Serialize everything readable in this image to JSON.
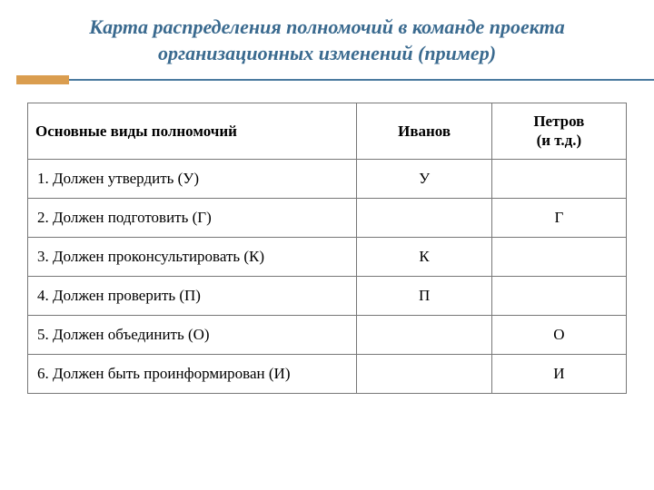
{
  "title": "Карта распределения полномочий в команде проекта организационных изменений (пример)",
  "table": {
    "columns": [
      "Основные виды полномочий",
      "Иванов",
      "Петров\n(и т.д.)"
    ],
    "rows": [
      {
        "label": "1. Должен утвердить (У)",
        "ivanov": "У",
        "petrov": ""
      },
      {
        "label": "2. Должен подготовить (Г)",
        "ivanov": "",
        "petrov": "Г"
      },
      {
        "label": "3. Должен проконсультировать (К)",
        "ivanov": "К",
        "petrov": ""
      },
      {
        "label": "4. Должен проверить (П)",
        "ivanov": "П",
        "petrov": ""
      },
      {
        "label": "5. Должен объединить (О)",
        "ivanov": "",
        "petrov": "О"
      },
      {
        "label": "6. Должен быть проинформирован (И)",
        "ivanov": "",
        "petrov": "И"
      }
    ]
  },
  "colors": {
    "title": "#3a6a8f",
    "accent": "#da9d4f",
    "rule": "#4a7a9f",
    "border": "#777777",
    "text": "#000000",
    "background": "#ffffff"
  }
}
